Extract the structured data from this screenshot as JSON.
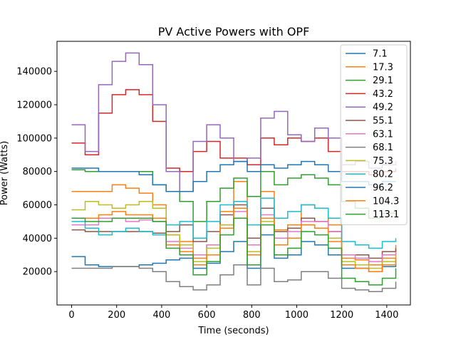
{
  "chart_data": {
    "type": "line",
    "title": "PV Active Powers with OPF",
    "xlabel": "Time (seconds)",
    "ylabel": "Power (Watts)",
    "xlim": [
      -65,
      1505
    ],
    "ylim": [
      0,
      158000
    ],
    "xticks": [
      0,
      200,
      400,
      600,
      800,
      1000,
      1200,
      1400
    ],
    "yticks": [
      20000,
      40000,
      60000,
      80000,
      100000,
      120000,
      140000
    ],
    "grid": false,
    "legend_position": "top-right",
    "x": [
      0,
      60,
      120,
      180,
      240,
      300,
      360,
      420,
      480,
      540,
      600,
      660,
      720,
      780,
      840,
      900,
      960,
      1020,
      1080,
      1140,
      1200,
      1260,
      1320,
      1380,
      1440
    ],
    "series": [
      {
        "name": "7.1",
        "color": "#1f77b4",
        "values": [
          29000,
          24000,
          23000,
          23000,
          23000,
          24000,
          25000,
          27000,
          28000,
          22000,
          25000,
          32000,
          38000,
          22000,
          42000,
          28000,
          30000,
          38000,
          36000,
          30000,
          22000,
          22000,
          20000,
          23000,
          28000
        ]
      },
      {
        "name": "17.3",
        "color": "#ff7f0e",
        "values": [
          68000,
          68000,
          68000,
          72000,
          70000,
          67000,
          60000,
          42000,
          38000,
          28000,
          36000,
          56000,
          74000,
          40000,
          68000,
          45000,
          48000,
          60000,
          58000,
          48000,
          28000,
          27000,
          24000,
          28000,
          36000
        ]
      },
      {
        "name": "29.1",
        "color": "#2ca02c",
        "values": [
          81000,
          80000,
          80000,
          80000,
          80000,
          80000,
          72000,
          68000,
          62000,
          50000,
          62000,
          70000,
          76000,
          65000,
          80000,
          72000,
          76000,
          78000,
          76000,
          72000,
          62000,
          58000,
          52000,
          55000,
          54000
        ]
      },
      {
        "name": "43.2",
        "color": "#d62728",
        "values": [
          97000,
          90000,
          115000,
          126000,
          129000,
          126000,
          110000,
          82000,
          80000,
          92000,
          98000,
          88000,
          88000,
          84000,
          100000,
          96000,
          100000,
          98000,
          100000,
          92000,
          80000,
          80000,
          78000,
          80000,
          82000
        ]
      },
      {
        "name": "49.2",
        "color": "#9467bd",
        "values": [
          108000,
          92000,
          132000,
          146000,
          151000,
          144000,
          120000,
          80000,
          68000,
          98000,
          108000,
          100000,
          86000,
          88000,
          112000,
          116000,
          102000,
          98000,
          106000,
          100000,
          84000,
          86000,
          82000,
          84000,
          86000
        ]
      },
      {
        "name": "55.1",
        "color": "#8c564b",
        "values": [
          45000,
          44000,
          44000,
          44000,
          44000,
          44000,
          43000,
          44000,
          48000,
          38000,
          44000,
          54000,
          60000,
          40000,
          58000,
          44000,
          46000,
          52000,
          50000,
          44000,
          30000,
          30000,
          28000,
          32000,
          34000
        ]
      },
      {
        "name": "63.1",
        "color": "#e377c2",
        "values": [
          48000,
          48000,
          52000,
          52000,
          50000,
          51000,
          50000,
          38000,
          34000,
          30000,
          36000,
          48000,
          56000,
          36000,
          54000,
          40000,
          44000,
          50000,
          50000,
          44000,
          30000,
          28000,
          26000,
          30000,
          32000
        ]
      },
      {
        "name": "68.1",
        "color": "#7f7f7f",
        "values": [
          22000,
          22000,
          22000,
          23000,
          23000,
          22000,
          20000,
          14000,
          11000,
          9000,
          12000,
          18000,
          24000,
          12000,
          22000,
          14000,
          15000,
          20000,
          20000,
          16000,
          10000,
          9000,
          8000,
          10000,
          14000
        ]
      },
      {
        "name": "75.3",
        "color": "#bcbd22",
        "values": [
          57000,
          62000,
          60000,
          58000,
          60000,
          62000,
          58000,
          42000,
          36000,
          26000,
          34000,
          48000,
          58000,
          32000,
          50000,
          36000,
          40000,
          48000,
          46000,
          40000,
          26000,
          24000,
          22000,
          26000,
          30000
        ]
      },
      {
        "name": "80.2",
        "color": "#17becf",
        "values": [
          50000,
          46000,
          42000,
          44000,
          46000,
          44000,
          42000,
          48000,
          50000,
          40000,
          50000,
          60000,
          62000,
          48000,
          64000,
          52000,
          56000,
          60000,
          58000,
          52000,
          38000,
          36000,
          34000,
          38000,
          40000
        ]
      },
      {
        "name": "96.2",
        "color": "#1f77b4",
        "values": [
          82000,
          82000,
          80000,
          80000,
          80000,
          78000,
          72000,
          68000,
          68000,
          74000,
          80000,
          84000,
          86000,
          80000,
          84000,
          82000,
          84000,
          86000,
          84000,
          80000,
          74000,
          74000,
          72000,
          74000,
          74000
        ]
      },
      {
        "name": "104.3",
        "color": "#ff7f0e",
        "values": [
          52000,
          52000,
          54000,
          56000,
          54000,
          54000,
          52000,
          36000,
          32000,
          24000,
          30000,
          46000,
          58000,
          30000,
          52000,
          36000,
          40000,
          48000,
          46000,
          38000,
          24000,
          22000,
          20000,
          24000,
          28000
        ]
      },
      {
        "name": "113.1",
        "color": "#2ca02c",
        "values": [
          52000,
          50000,
          50000,
          52000,
          52000,
          52000,
          50000,
          34000,
          30000,
          18000,
          26000,
          42000,
          52000,
          24000,
          48000,
          30000,
          34000,
          44000,
          42000,
          34000,
          16000,
          14000,
          12000,
          16000,
          22000
        ]
      }
    ]
  }
}
